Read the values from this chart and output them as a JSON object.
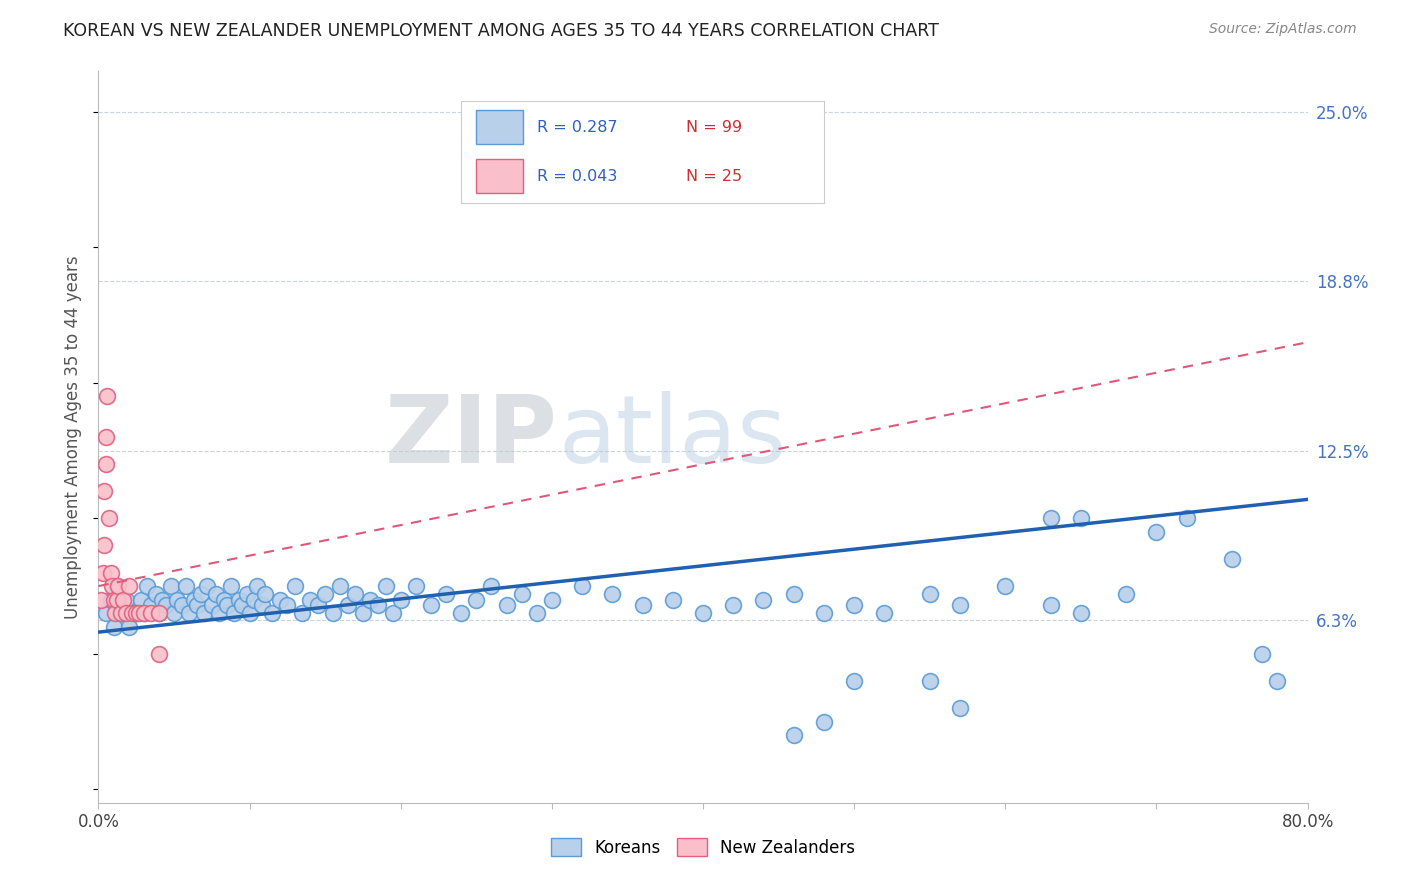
{
  "title": "KOREAN VS NEW ZEALANDER UNEMPLOYMENT AMONG AGES 35 TO 44 YEARS CORRELATION CHART",
  "source": "Source: ZipAtlas.com",
  "ylabel": "Unemployment Among Ages 35 to 44 years",
  "xlim": [
    0.0,
    0.8
  ],
  "ylim": [
    -0.005,
    0.265
  ],
  "plot_ylim": [
    0.0,
    0.25
  ],
  "xticks": [
    0.0,
    0.1,
    0.2,
    0.3,
    0.4,
    0.5,
    0.6,
    0.7,
    0.8
  ],
  "ytick_values": [
    0.0625,
    0.125,
    0.1875,
    0.25
  ],
  "ytick_labels": [
    "6.3%",
    "12.5%",
    "18.8%",
    "25.0%"
  ],
  "korean_R": 0.287,
  "korean_N": 99,
  "nz_R": 0.043,
  "nz_N": 25,
  "korean_fill": "#b8d0ea",
  "korean_edge": "#5b9bd5",
  "nz_fill": "#f9c0cb",
  "nz_edge": "#e06080",
  "korean_line_color": "#2060b0",
  "nz_line_color": "#e05878",
  "background_color": "#ffffff",
  "grid_color": "#c8d4e0",
  "korean_x": [
    0.005,
    0.008,
    0.01,
    0.012,
    0.015,
    0.018,
    0.02,
    0.025,
    0.028,
    0.03,
    0.032,
    0.035,
    0.038,
    0.04,
    0.042,
    0.045,
    0.048,
    0.05,
    0.052,
    0.055,
    0.058,
    0.06,
    0.063,
    0.065,
    0.068,
    0.07,
    0.072,
    0.075,
    0.078,
    0.08,
    0.083,
    0.085,
    0.088,
    0.09,
    0.093,
    0.095,
    0.098,
    0.1,
    0.103,
    0.105,
    0.108,
    0.11,
    0.115,
    0.12,
    0.125,
    0.13,
    0.135,
    0.14,
    0.145,
    0.15,
    0.155,
    0.16,
    0.165,
    0.17,
    0.175,
    0.18,
    0.185,
    0.19,
    0.195,
    0.2,
    0.21,
    0.22,
    0.23,
    0.24,
    0.25,
    0.26,
    0.27,
    0.28,
    0.29,
    0.3,
    0.32,
    0.34,
    0.36,
    0.38,
    0.4,
    0.42,
    0.44,
    0.46,
    0.48,
    0.5,
    0.52,
    0.55,
    0.57,
    0.6,
    0.63,
    0.65,
    0.68,
    0.7,
    0.72,
    0.75,
    0.77,
    0.78,
    0.63,
    0.65,
    0.5,
    0.48,
    0.46,
    0.55,
    0.57
  ],
  "korean_y": [
    0.065,
    0.07,
    0.06,
    0.075,
    0.065,
    0.07,
    0.06,
    0.065,
    0.07,
    0.065,
    0.075,
    0.068,
    0.072,
    0.065,
    0.07,
    0.068,
    0.075,
    0.065,
    0.07,
    0.068,
    0.075,
    0.065,
    0.07,
    0.068,
    0.072,
    0.065,
    0.075,
    0.068,
    0.072,
    0.065,
    0.07,
    0.068,
    0.075,
    0.065,
    0.07,
    0.068,
    0.072,
    0.065,
    0.07,
    0.075,
    0.068,
    0.072,
    0.065,
    0.07,
    0.068,
    0.075,
    0.065,
    0.07,
    0.068,
    0.072,
    0.065,
    0.075,
    0.068,
    0.072,
    0.065,
    0.07,
    0.068,
    0.075,
    0.065,
    0.07,
    0.075,
    0.068,
    0.072,
    0.065,
    0.07,
    0.075,
    0.068,
    0.072,
    0.065,
    0.07,
    0.075,
    0.072,
    0.068,
    0.07,
    0.065,
    0.068,
    0.07,
    0.072,
    0.065,
    0.068,
    0.065,
    0.072,
    0.068,
    0.075,
    0.068,
    0.065,
    0.072,
    0.095,
    0.1,
    0.085,
    0.05,
    0.04,
    0.1,
    0.1,
    0.04,
    0.025,
    0.02,
    0.04,
    0.03
  ],
  "nz_x": [
    0.002,
    0.003,
    0.004,
    0.004,
    0.005,
    0.005,
    0.006,
    0.007,
    0.008,
    0.009,
    0.01,
    0.011,
    0.012,
    0.013,
    0.015,
    0.016,
    0.018,
    0.02,
    0.022,
    0.025,
    0.027,
    0.03,
    0.035,
    0.04,
    0.04
  ],
  "nz_y": [
    0.07,
    0.08,
    0.09,
    0.11,
    0.12,
    0.13,
    0.145,
    0.1,
    0.08,
    0.075,
    0.07,
    0.065,
    0.07,
    0.075,
    0.065,
    0.07,
    0.065,
    0.075,
    0.065,
    0.065,
    0.065,
    0.065,
    0.065,
    0.065,
    0.05
  ],
  "korean_line_x0": 0.0,
  "korean_line_x1": 0.8,
  "korean_line_y0": 0.058,
  "korean_line_y1": 0.107,
  "nz_line_x0": 0.0,
  "nz_line_x1": 0.8,
  "nz_line_y0": 0.075,
  "nz_line_y1": 0.165
}
